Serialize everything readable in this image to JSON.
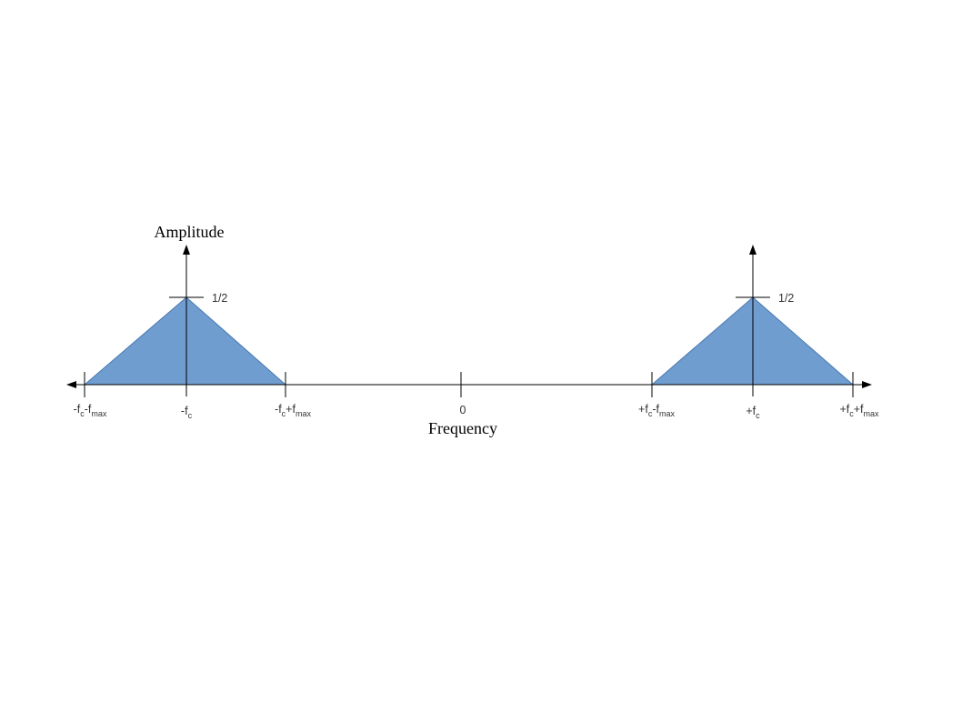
{
  "axes": {
    "y_label": "Amplitude",
    "x_label": "Frequency"
  },
  "peak_label": "1/2",
  "ticks": {
    "t1": {
      "a": "-f",
      "b": "c",
      "c": "-f",
      "d": "max"
    },
    "t2": {
      "a": "-f",
      "b": "c"
    },
    "t3": {
      "a": "-f",
      "b": "c",
      "c": "+f",
      "d": "max"
    },
    "t4": {
      "a": "0"
    },
    "t5": {
      "a": "+f",
      "b": "c",
      "c": "-f",
      "d": "max"
    },
    "t6": {
      "a": "+f",
      "b": "c"
    },
    "t7": {
      "a": "+f",
      "b": "c",
      "c": "+f",
      "d": "max"
    }
  },
  "colors": {
    "spectrum_fill": "#6f9dd0",
    "spectrum_stroke": "#4a78b0",
    "line": "#000000"
  }
}
